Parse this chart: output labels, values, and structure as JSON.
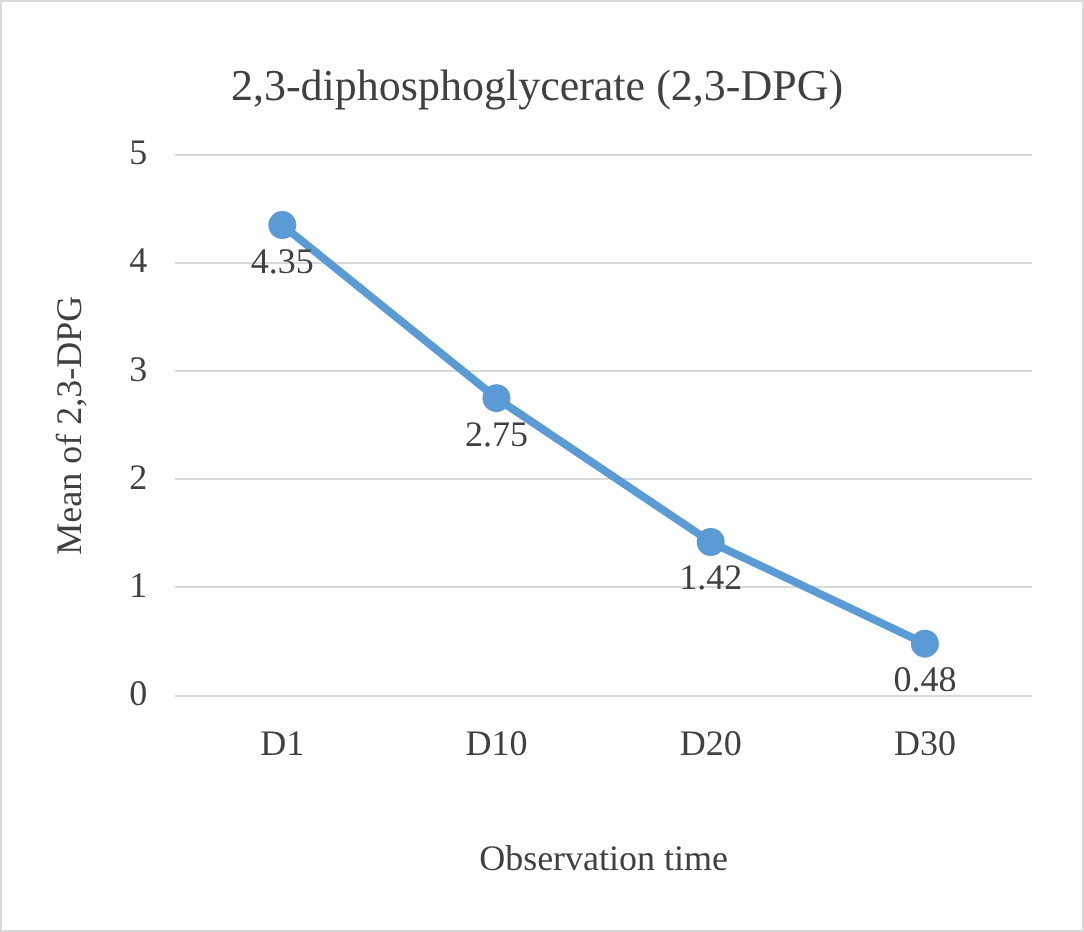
{
  "chart_data": {
    "type": "line",
    "title": "2,3-diphosphoglycerate (2,3-DPG)",
    "xlabel": "Observation time",
    "ylabel": "Mean of 2,3-DPG",
    "categories": [
      "D1",
      "D10",
      "D20",
      "D30"
    ],
    "series": [
      {
        "color": "#5b9bd5",
        "values": [
          4.35,
          2.75,
          1.42,
          0.48
        ]
      }
    ],
    "ylim": [
      0,
      5
    ],
    "yticks": [
      0,
      1,
      2,
      3,
      4,
      5
    ],
    "grid": "y",
    "legend": false,
    "marker": "circle",
    "line_style": "solid",
    "data_labels": true
  }
}
